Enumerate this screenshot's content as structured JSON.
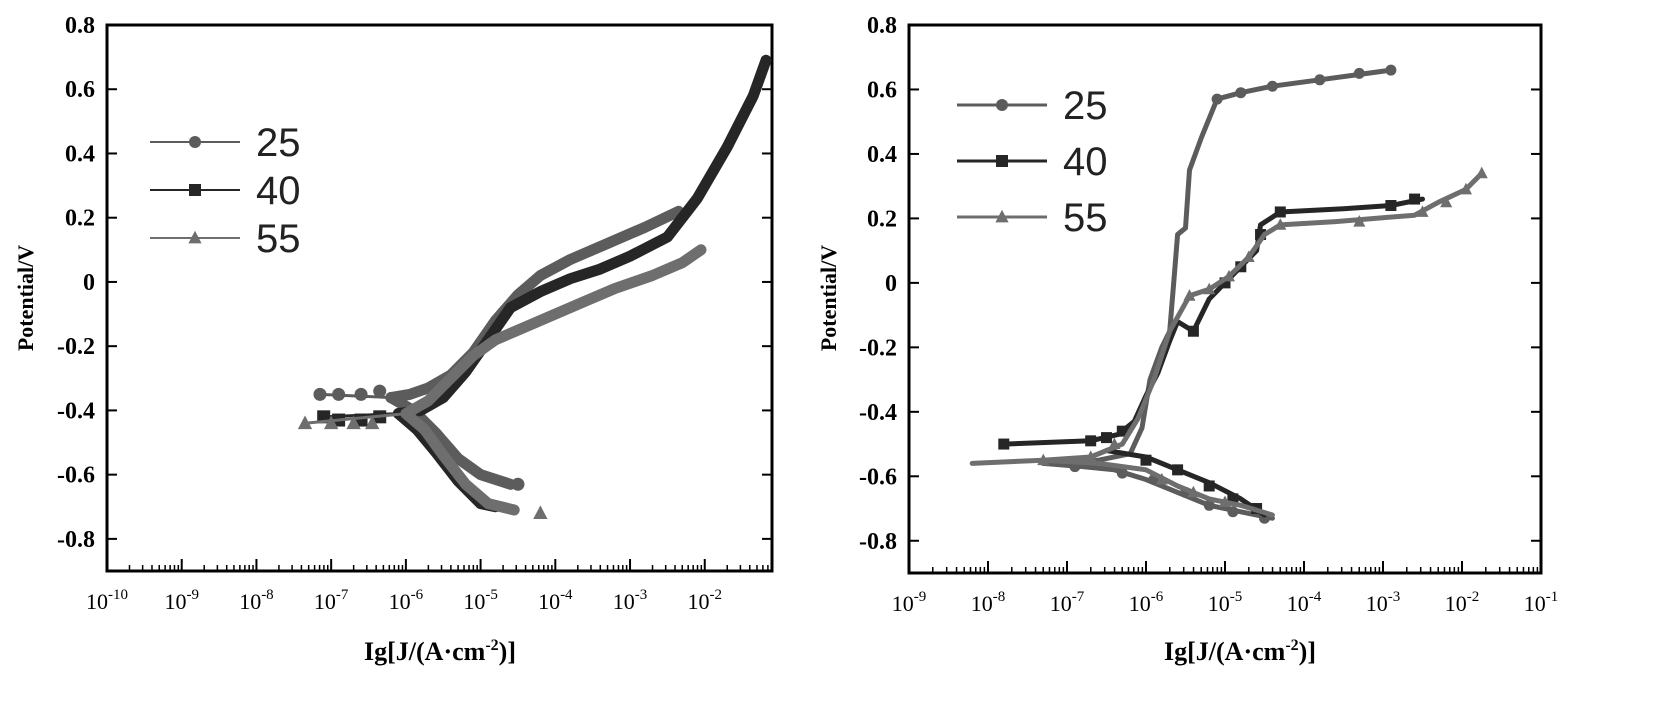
{
  "chart_data": [
    {
      "type": "line",
      "xscale": "log",
      "x_tick_labels": [
        {
          "base": "10",
          "exp": "-10"
        },
        {
          "base": "10",
          "exp": "-9"
        },
        {
          "base": "10",
          "exp": "-8"
        },
        {
          "base": "10",
          "exp": "-7"
        },
        {
          "base": "10",
          "exp": "-6"
        },
        {
          "base": "10",
          "exp": "-5"
        },
        {
          "base": "10",
          "exp": "-4"
        },
        {
          "base": "10",
          "exp": "-3"
        },
        {
          "base": "10",
          "exp": "-2"
        }
      ],
      "xlim": [
        -10,
        -1.1
      ],
      "ylim": [
        -0.9,
        0.8
      ],
      "y_tick_labels": [
        "0.8",
        "0.6",
        "0.4",
        "0.2",
        "0",
        "-0.2",
        "-0.4",
        "-0.6",
        "-0.8"
      ],
      "xlabel": {
        "prefix": "Ig[J/(A·cm",
        "sup": "-2",
        "suffix": ")]"
      },
      "ylabel": "Potential/V",
      "legend_position": "upper-left",
      "series": [
        {
          "name": "25",
          "color": "#5c5c5c",
          "marker": "circle",
          "points": [
            [
              -6.2,
              -0.36
            ],
            [
              -5.95,
              -0.35
            ],
            [
              -5.7,
              -0.33
            ],
            [
              -5.4,
              -0.29
            ],
            [
              -5.1,
              -0.22
            ],
            [
              -4.8,
              -0.12
            ],
            [
              -4.5,
              -0.04
            ],
            [
              -4.2,
              0.02
            ],
            [
              -3.8,
              0.07
            ],
            [
              -3.3,
              0.12
            ],
            [
              -2.8,
              0.17
            ],
            [
              -2.35,
              0.22
            ]
          ],
          "cathodic": [
            [
              -6.2,
              -0.36
            ],
            [
              -5.9,
              -0.4
            ],
            [
              -5.6,
              -0.47
            ],
            [
              -5.3,
              -0.55
            ],
            [
              -5.0,
              -0.6
            ],
            [
              -4.6,
              -0.63
            ]
          ],
          "markers": [
            [
              -7.15,
              -0.35
            ],
            [
              -6.9,
              -0.35
            ],
            [
              -6.6,
              -0.35
            ],
            [
              -6.35,
              -0.34
            ],
            [
              -4.5,
              -0.63
            ]
          ]
        },
        {
          "name": "40",
          "color": "#262626",
          "marker": "square",
          "points": [
            [
              -6.1,
              -0.41
            ],
            [
              -5.8,
              -0.4
            ],
            [
              -5.5,
              -0.36
            ],
            [
              -5.2,
              -0.28
            ],
            [
              -4.9,
              -0.18
            ],
            [
              -4.6,
              -0.08
            ],
            [
              -4.2,
              -0.03
            ],
            [
              -3.8,
              0.01
            ],
            [
              -3.4,
              0.04
            ],
            [
              -3.0,
              0.08
            ],
            [
              -2.5,
              0.14
            ],
            [
              -2.1,
              0.26
            ],
            [
              -1.7,
              0.42
            ],
            [
              -1.35,
              0.58
            ],
            [
              -1.18,
              0.69
            ]
          ],
          "cathodic": [
            [
              -6.1,
              -0.41
            ],
            [
              -5.85,
              -0.46
            ],
            [
              -5.6,
              -0.53
            ],
            [
              -5.3,
              -0.62
            ],
            [
              -5.0,
              -0.69
            ],
            [
              -4.8,
              -0.7
            ]
          ],
          "markers": [
            [
              -7.1,
              -0.42
            ],
            [
              -6.9,
              -0.43
            ],
            [
              -6.6,
              -0.43
            ],
            [
              -6.35,
              -0.42
            ]
          ]
        },
        {
          "name": "55",
          "color": "#6e6e6e",
          "marker": "triangle",
          "points": [
            [
              -6.0,
              -0.41
            ],
            [
              -5.7,
              -0.37
            ],
            [
              -5.4,
              -0.3
            ],
            [
              -5.1,
              -0.23
            ],
            [
              -4.8,
              -0.18
            ],
            [
              -4.4,
              -0.14
            ],
            [
              -4.0,
              -0.1
            ],
            [
              -3.6,
              -0.06
            ],
            [
              -3.2,
              -0.02
            ],
            [
              -2.7,
              0.02
            ],
            [
              -2.3,
              0.06
            ],
            [
              -2.05,
              0.1
            ]
          ],
          "cathodic": [
            [
              -6.0,
              -0.41
            ],
            [
              -5.75,
              -0.46
            ],
            [
              -5.5,
              -0.54
            ],
            [
              -5.2,
              -0.63
            ],
            [
              -4.9,
              -0.69
            ],
            [
              -4.55,
              -0.71
            ]
          ],
          "markers": [
            [
              -7.35,
              -0.44
            ],
            [
              -7.0,
              -0.44
            ],
            [
              -6.7,
              -0.44
            ],
            [
              -6.45,
              -0.44
            ],
            [
              -4.2,
              -0.72
            ]
          ]
        }
      ]
    },
    {
      "type": "line",
      "xscale": "log",
      "x_tick_labels": [
        {
          "base": "10",
          "exp": "-9"
        },
        {
          "base": "10",
          "exp": "-8"
        },
        {
          "base": "10",
          "exp": "-7"
        },
        {
          "base": "10",
          "exp": "-6"
        },
        {
          "base": "10",
          "exp": "-5"
        },
        {
          "base": "10",
          "exp": "-4"
        },
        {
          "base": "10",
          "exp": "-3"
        },
        {
          "base": "10",
          "exp": "-2"
        },
        {
          "base": "10",
          "exp": "-1"
        }
      ],
      "xlim": [
        -9,
        -1
      ],
      "ylim": [
        -0.9,
        0.8
      ],
      "y_tick_labels": [
        "0.8",
        "0.6",
        "0.4",
        "0.2",
        "0",
        "-0.2",
        "-0.4",
        "-0.6",
        "-0.8"
      ],
      "xlabel": {
        "prefix": "Ig[J/(A·cm",
        "sup": "-2",
        "suffix": ")]"
      },
      "ylabel": "Potential/V",
      "legend_position": "upper-left",
      "series": [
        {
          "name": "25",
          "color": "#5c5c5c",
          "marker": "circle",
          "points": [
            [
              -7.3,
              -0.56
            ],
            [
              -6.6,
              -0.55
            ],
            [
              -6.2,
              -0.53
            ],
            [
              -6.05,
              -0.45
            ],
            [
              -5.95,
              -0.3
            ],
            [
              -5.8,
              -0.2
            ],
            [
              -5.7,
              -0.15
            ],
            [
              -5.65,
              0.0
            ],
            [
              -5.6,
              0.15
            ],
            [
              -5.5,
              0.17
            ],
            [
              -5.45,
              0.35
            ],
            [
              -5.3,
              0.45
            ],
            [
              -5.1,
              0.57
            ],
            [
              -4.8,
              0.59
            ],
            [
              -4.4,
              0.61
            ],
            [
              -3.8,
              0.63
            ],
            [
              -3.2,
              0.65
            ],
            [
              -2.9,
              0.66
            ]
          ],
          "cathodic": [
            [
              -7.3,
              -0.56
            ],
            [
              -6.8,
              -0.57
            ],
            [
              -6.4,
              -0.58
            ],
            [
              -6.0,
              -0.61
            ],
            [
              -5.6,
              -0.65
            ],
            [
              -5.2,
              -0.69
            ],
            [
              -4.8,
              -0.71
            ],
            [
              -4.4,
              -0.73
            ]
          ],
          "markers": [
            [
              -6.9,
              -0.57
            ],
            [
              -6.3,
              -0.59
            ],
            [
              -5.9,
              -0.61
            ],
            [
              -5.5,
              -0.65
            ],
            [
              -5.2,
              -0.69
            ],
            [
              -4.9,
              -0.71
            ],
            [
              -4.5,
              -0.73
            ],
            [
              -5.1,
              0.57
            ],
            [
              -4.8,
              0.59
            ],
            [
              -4.4,
              0.61
            ],
            [
              -3.8,
              0.63
            ],
            [
              -3.3,
              0.65
            ],
            [
              -2.9,
              0.66
            ]
          ]
        },
        {
          "name": "40",
          "color": "#262626",
          "marker": "square",
          "points": [
            [
              -7.8,
              -0.5
            ],
            [
              -6.7,
              -0.49
            ],
            [
              -6.35,
              -0.47
            ],
            [
              -6.15,
              -0.43
            ],
            [
              -6.0,
              -0.35
            ],
            [
              -5.85,
              -0.28
            ],
            [
              -5.7,
              -0.18
            ],
            [
              -5.6,
              -0.12
            ],
            [
              -5.4,
              -0.15
            ],
            [
              -5.2,
              -0.05
            ],
            [
              -5.0,
              0.0
            ],
            [
              -4.8,
              0.05
            ],
            [
              -4.6,
              0.1
            ],
            [
              -4.55,
              0.18
            ],
            [
              -4.3,
              0.22
            ],
            [
              -3.5,
              0.23
            ],
            [
              -2.9,
              0.24
            ],
            [
              -2.5,
              0.26
            ]
          ],
          "cathodic": [
            [
              -6.5,
              -0.52
            ],
            [
              -6.0,
              -0.54
            ],
            [
              -5.6,
              -0.58
            ],
            [
              -5.2,
              -0.62
            ],
            [
              -4.8,
              -0.67
            ],
            [
              -4.5,
              -0.72
            ]
          ],
          "markers": [
            [
              -7.8,
              -0.5
            ],
            [
              -6.7,
              -0.49
            ],
            [
              -6.5,
              -0.48
            ],
            [
              -6.3,
              -0.46
            ],
            [
              -5.4,
              -0.15
            ],
            [
              -5.0,
              0.0
            ],
            [
              -4.8,
              0.05
            ],
            [
              -4.55,
              0.15
            ],
            [
              -4.3,
              0.22
            ],
            [
              -2.9,
              0.24
            ],
            [
              -2.6,
              0.26
            ],
            [
              -6.0,
              -0.55
            ],
            [
              -5.6,
              -0.58
            ],
            [
              -5.2,
              -0.63
            ],
            [
              -4.9,
              -0.67
            ],
            [
              -4.6,
              -0.7
            ]
          ]
        },
        {
          "name": "55",
          "color": "#6e6e6e",
          "marker": "triangle",
          "points": [
            [
              -8.2,
              -0.56
            ],
            [
              -7.3,
              -0.55
            ],
            [
              -6.7,
              -0.54
            ],
            [
              -6.3,
              -0.5
            ],
            [
              -6.1,
              -0.42
            ],
            [
              -5.9,
              -0.3
            ],
            [
              -5.7,
              -0.15
            ],
            [
              -5.45,
              -0.04
            ],
            [
              -5.2,
              -0.02
            ],
            [
              -4.95,
              0.02
            ],
            [
              -4.7,
              0.08
            ],
            [
              -4.5,
              0.15
            ],
            [
              -4.3,
              0.18
            ],
            [
              -3.6,
              0.19
            ],
            [
              -2.6,
              0.21
            ],
            [
              -2.3,
              0.25
            ],
            [
              -1.95,
              0.29
            ],
            [
              -1.75,
              0.34
            ]
          ],
          "cathodic": [
            [
              -7.3,
              -0.55
            ],
            [
              -6.6,
              -0.56
            ],
            [
              -6.0,
              -0.58
            ],
            [
              -5.6,
              -0.63
            ],
            [
              -5.2,
              -0.67
            ],
            [
              -4.8,
              -0.69
            ],
            [
              -4.4,
              -0.72
            ]
          ],
          "markers": [
            [
              -7.3,
              -0.55
            ],
            [
              -6.7,
              -0.54
            ],
            [
              -6.4,
              -0.5
            ],
            [
              -5.45,
              -0.04
            ],
            [
              -5.2,
              -0.02
            ],
            [
              -4.95,
              0.02
            ],
            [
              -4.7,
              0.08
            ],
            [
              -4.3,
              0.18
            ],
            [
              -3.3,
              0.19
            ],
            [
              -2.5,
              0.22
            ],
            [
              -2.2,
              0.25
            ],
            [
              -1.95,
              0.29
            ],
            [
              -1.75,
              0.34
            ],
            [
              -5.8,
              -0.61
            ],
            [
              -5.4,
              -0.65
            ],
            [
              -5.0,
              -0.68
            ]
          ]
        }
      ]
    }
  ]
}
